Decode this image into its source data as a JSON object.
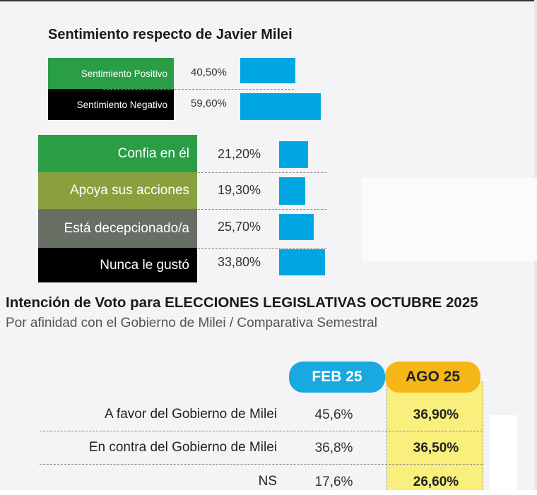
{
  "section1": {
    "title": "Sentimiento respecto de Javier Milei"
  },
  "chart_data": [
    {
      "type": "bar",
      "orientation": "horizontal",
      "title": "Sentimiento respecto de Javier Milei",
      "categories": [
        "Sentimiento Positivo",
        "Sentimiento Negativo"
      ],
      "values": [
        40.5,
        59.6
      ],
      "value_labels": [
        "40,50%",
        "59,60%"
      ],
      "label_colors": [
        "#2a9d47",
        "#000000"
      ],
      "bar_color": "#00a6e2"
    },
    {
      "type": "bar",
      "orientation": "horizontal",
      "categories": [
        "Confia en él",
        "Apoya sus acciones",
        "Está decepcionado/a",
        "Nunca le gustó"
      ],
      "values": [
        21.2,
        19.3,
        25.7,
        33.8
      ],
      "value_labels": [
        "21,20%",
        "19,30%",
        "25,70%",
        "33,80%"
      ],
      "label_colors": [
        "#2a9d47",
        "#8aa03f",
        "#676e63",
        "#000000"
      ],
      "bar_color": "#00a6e2"
    },
    {
      "type": "table",
      "title": "Intención de Voto para ELECCIONES LEGISLATIVAS OCTUBRE 2025",
      "subtitle": "Por afinidad con el Gobierno de Milei / Comparativa Semestral",
      "columns": [
        {
          "label": "FEB 25",
          "color": "#17a9e0"
        },
        {
          "label": "AGO 25",
          "color": "#f5b715"
        }
      ],
      "rows": [
        {
          "label": "A favor del Gobierno de Milei",
          "values": [
            "45,6%",
            "36,90%"
          ]
        },
        {
          "label": "En contra del Gobierno de Milei",
          "values": [
            "36,8%",
            "36,50%"
          ]
        },
        {
          "label": "NS",
          "values": [
            "17,6%",
            "26,60%"
          ]
        }
      ]
    }
  ]
}
